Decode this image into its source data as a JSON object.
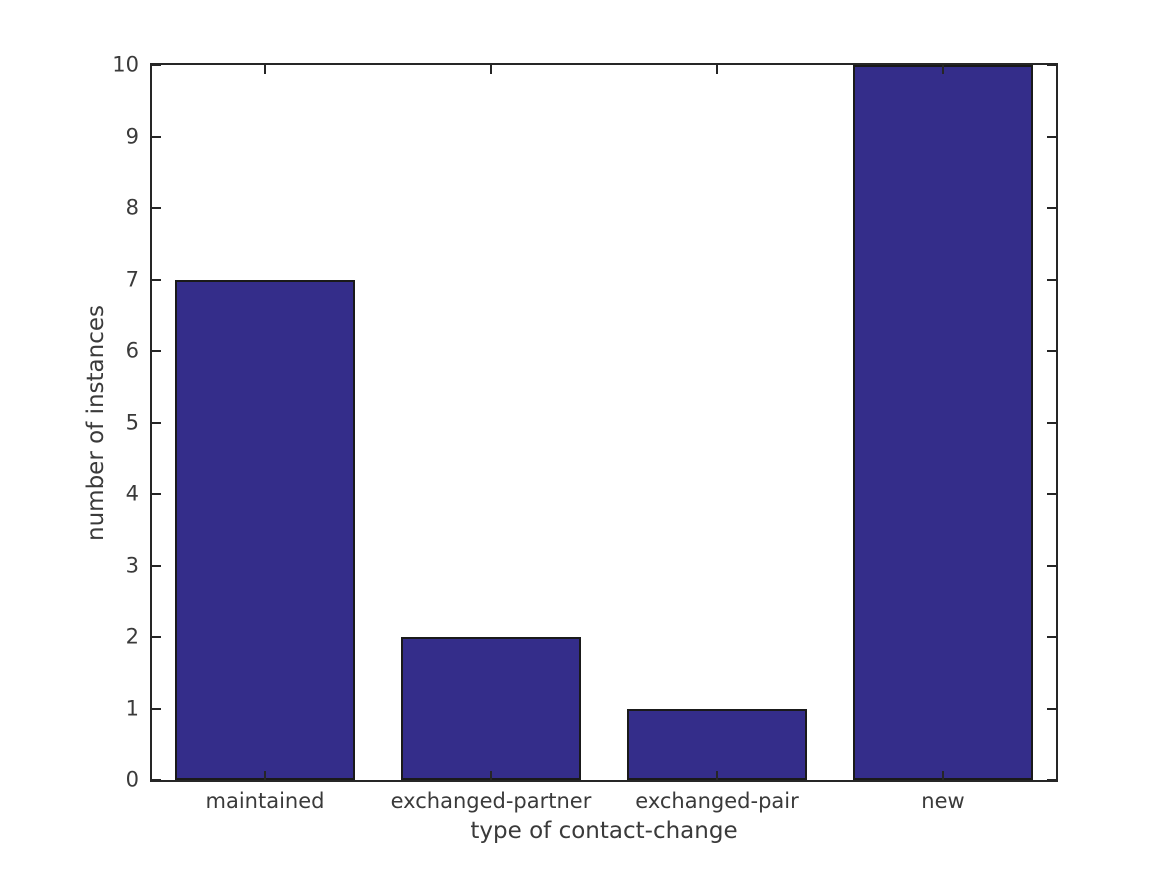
{
  "chart_data": {
    "type": "bar",
    "categories": [
      "maintained",
      "exchanged-partner",
      "exchanged-pair",
      "new"
    ],
    "values": [
      7,
      2,
      1,
      10
    ],
    "title": "",
    "xlabel": "type of contact-change",
    "ylabel": "number of instances",
    "ylim": [
      0,
      10
    ],
    "yticks": [
      0,
      1,
      2,
      3,
      4,
      5,
      6,
      7,
      8,
      9,
      10
    ],
    "bar_width_fraction": 0.8,
    "grid": false,
    "legend_position": "none",
    "colors": {
      "bar_fill": "#342d8a",
      "bar_edge": "#1a1a1a",
      "axis": "#262626",
      "text": "#3a3a3a",
      "background": "#ffffff"
    }
  }
}
